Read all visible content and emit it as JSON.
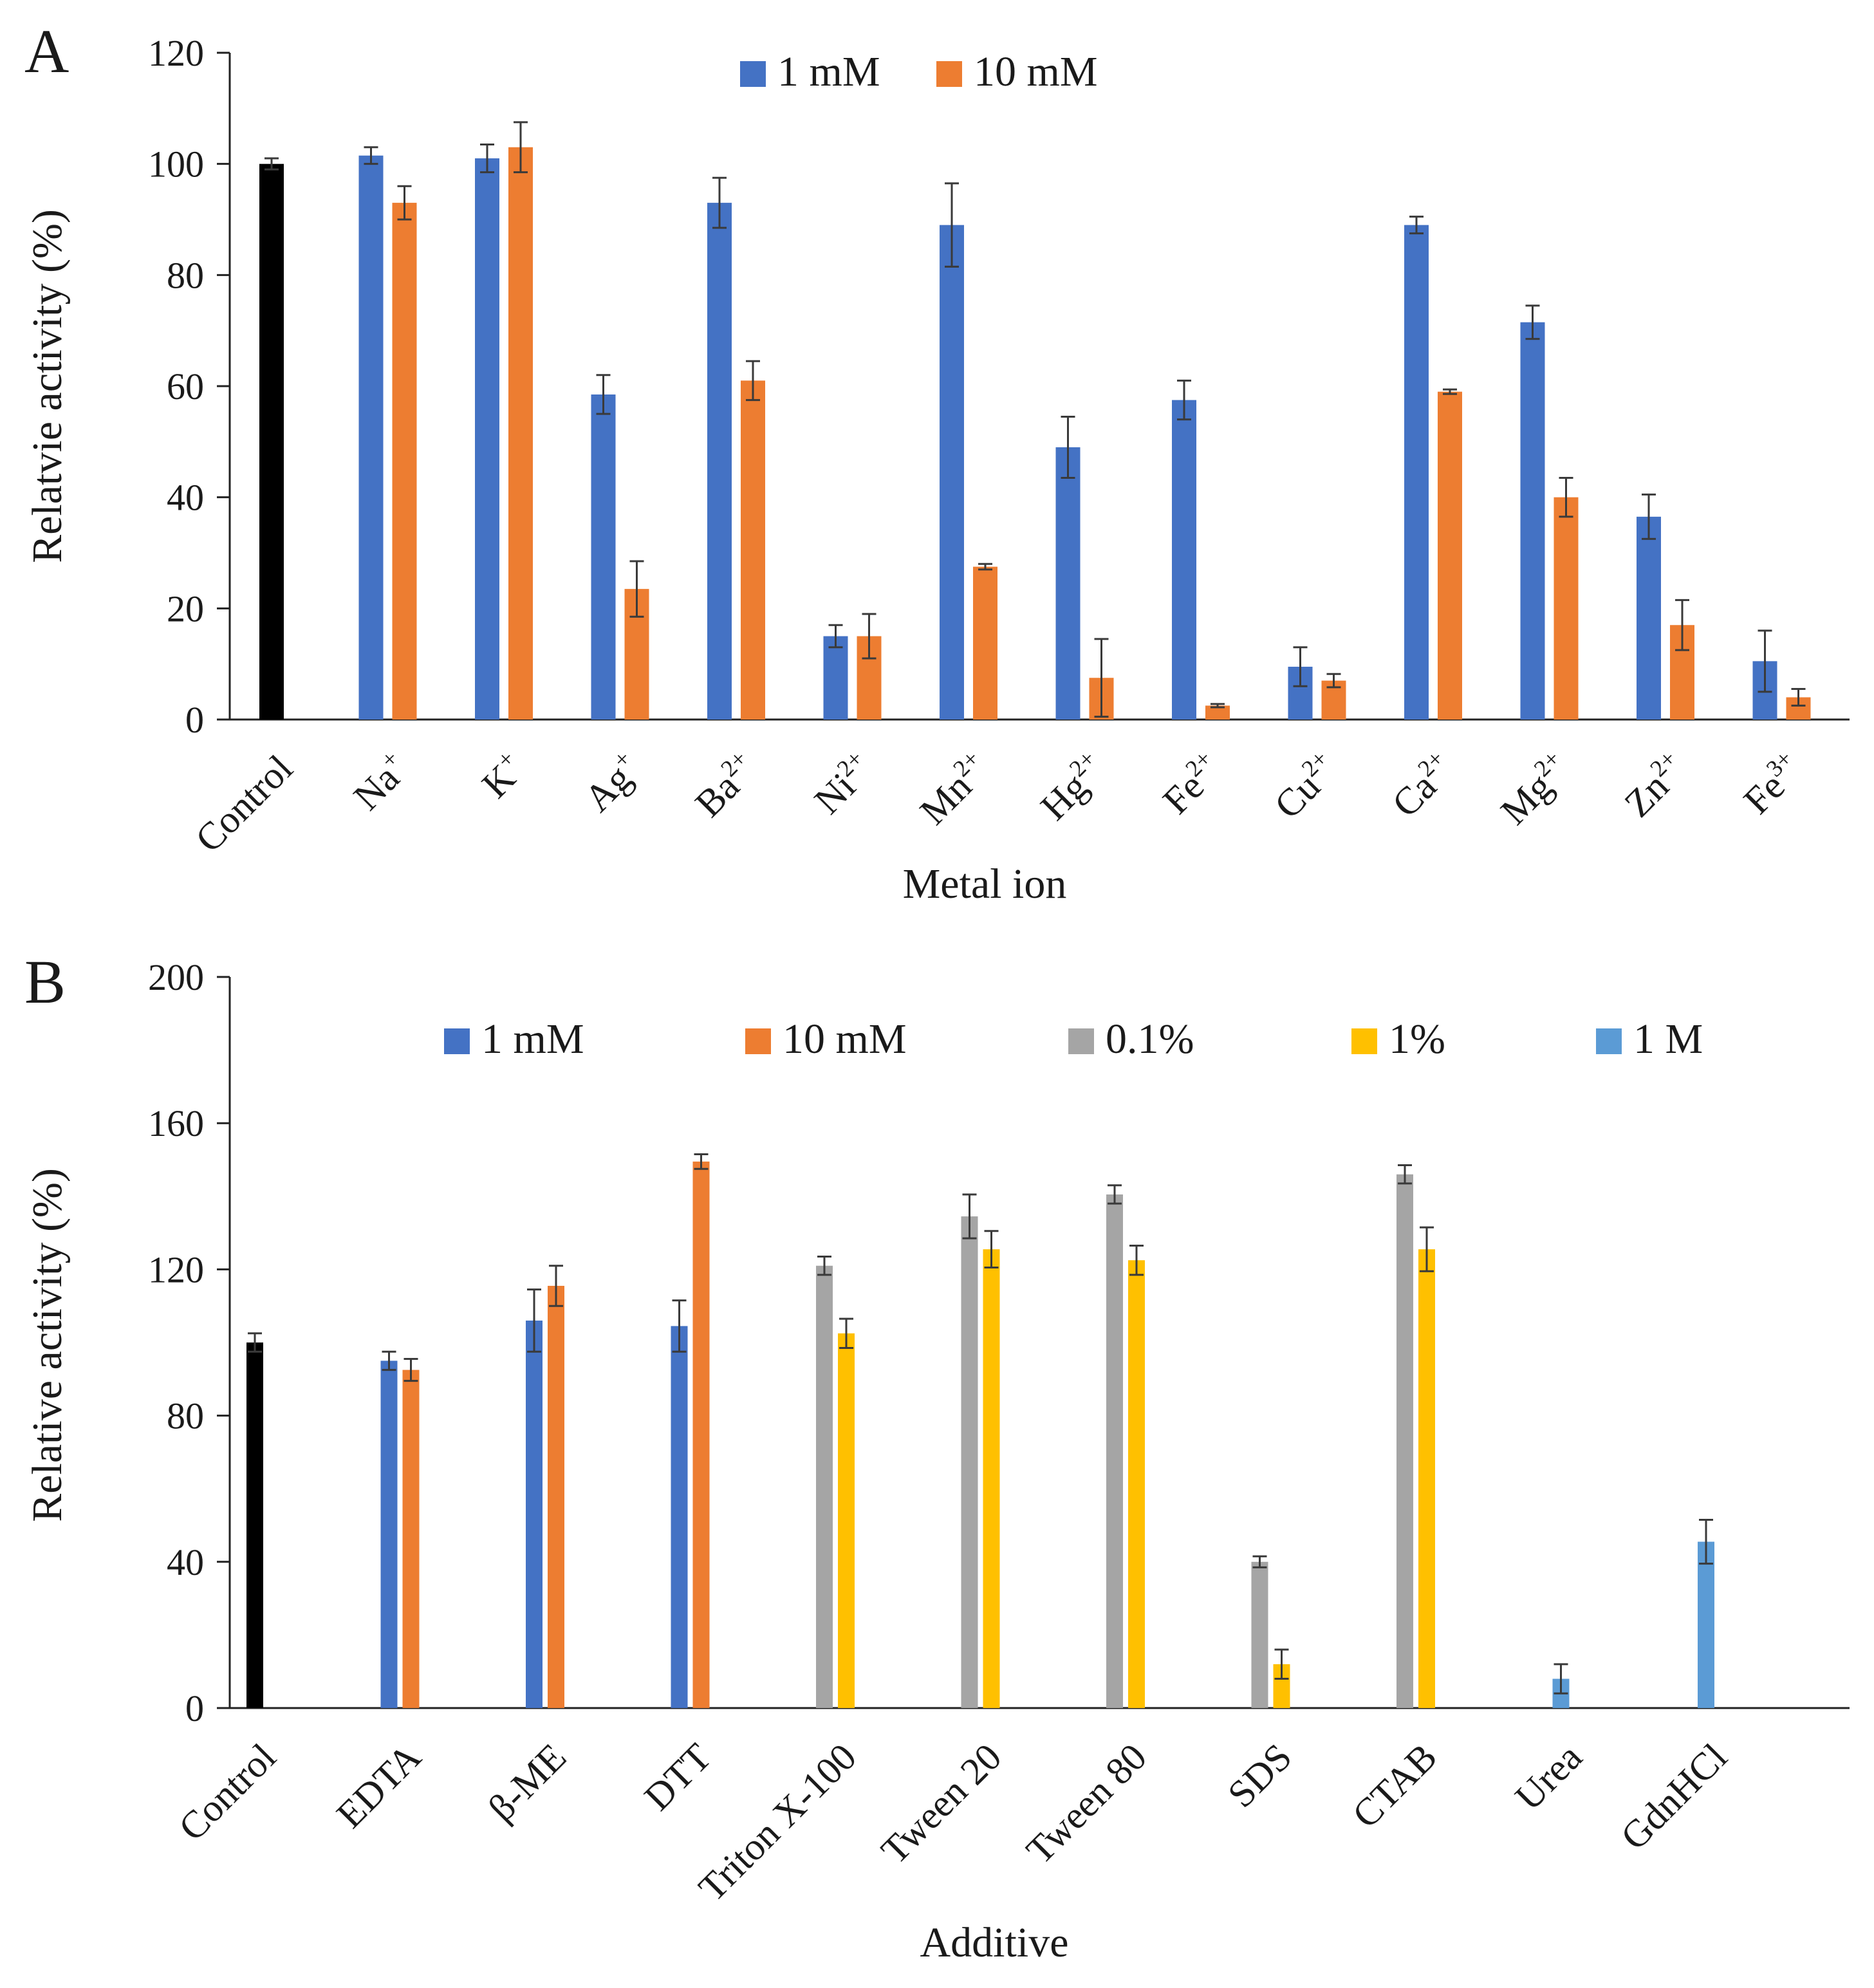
{
  "panels": [
    {
      "id": "A",
      "letter": "A"
    },
    {
      "id": "B",
      "letter": "B"
    }
  ],
  "chart_data": [
    {
      "panel": "A",
      "type": "bar",
      "xlabel": "Metal ion",
      "ylabel": "Relatvie activity (%)",
      "ylim": [
        0,
        120
      ],
      "yticks": [
        0,
        20,
        40,
        60,
        80,
        100,
        120
      ],
      "legend_position": "top-center",
      "grid": false,
      "categories": [
        {
          "base": "Control",
          "sup": ""
        },
        {
          "base": "Na",
          "sup": "+"
        },
        {
          "base": "K",
          "sup": "+"
        },
        {
          "base": "Ag",
          "sup": "+"
        },
        {
          "base": "Ba",
          "sup": "2+"
        },
        {
          "base": "Ni",
          "sup": "2+"
        },
        {
          "base": "Mn",
          "sup": "2+"
        },
        {
          "base": "Hg",
          "sup": "2+"
        },
        {
          "base": "Fe",
          "sup": "2+"
        },
        {
          "base": "Cu",
          "sup": "2+"
        },
        {
          "base": "Ca",
          "sup": "2+"
        },
        {
          "base": "Mg",
          "sup": "2+"
        },
        {
          "base": "Zn",
          "sup": "2+"
        },
        {
          "base": "Fe",
          "sup": "3+"
        }
      ],
      "control": {
        "value": 100,
        "error": 1,
        "color": "#000000"
      },
      "series": [
        {
          "name": "1 mM",
          "color": "#4472C4",
          "values": [
            null,
            101.5,
            101,
            58.5,
            93,
            15,
            89,
            49,
            57.5,
            9.5,
            89,
            71.5,
            36.5,
            10.5
          ],
          "errors": [
            null,
            1.5,
            2.5,
            3.5,
            4.5,
            2,
            7.5,
            5.5,
            3.5,
            3.5,
            1.5,
            3,
            4,
            5.5
          ]
        },
        {
          "name": "10 mM",
          "color": "#ED7D31",
          "values": [
            null,
            93,
            103,
            23.5,
            61,
            15,
            27.5,
            7.5,
            2.5,
            7,
            59,
            40,
            17,
            4
          ],
          "errors": [
            null,
            3,
            4.5,
            5,
            3.5,
            4,
            0.5,
            7,
            0.3,
            1.2,
            0.4,
            3.5,
            4.5,
            1.5
          ]
        }
      ]
    },
    {
      "panel": "B",
      "type": "bar",
      "xlabel": "Additive",
      "ylabel": "Relative activity (%)",
      "ylim": [
        0,
        200
      ],
      "yticks": [
        0,
        40,
        80,
        120,
        160,
        200
      ],
      "legend_position": "top",
      "grid": false,
      "categories": [
        {
          "base": "Control",
          "sup": ""
        },
        {
          "base": "EDTA",
          "sup": ""
        },
        {
          "base": "β-ME",
          "sup": ""
        },
        {
          "base": "DTT",
          "sup": ""
        },
        {
          "base": "Triton X-100",
          "sup": ""
        },
        {
          "base": "Tween 20",
          "sup": ""
        },
        {
          "base": "Tween 80",
          "sup": ""
        },
        {
          "base": "SDS",
          "sup": ""
        },
        {
          "base": "CTAB",
          "sup": ""
        },
        {
          "base": "Urea",
          "sup": ""
        },
        {
          "base": "GdnHCl",
          "sup": ""
        }
      ],
      "control": {
        "value": 100,
        "error": 2.5,
        "color": "#000000"
      },
      "series": [
        {
          "name": "1 mM",
          "color": "#4472C4",
          "values": [
            null,
            95,
            106,
            104.5,
            null,
            null,
            null,
            null,
            null,
            null,
            null
          ],
          "errors": [
            null,
            2.5,
            8.5,
            7,
            null,
            null,
            null,
            null,
            null,
            null,
            null
          ]
        },
        {
          "name": "10 mM",
          "color": "#ED7D31",
          "values": [
            null,
            92.5,
            115.5,
            149.5,
            null,
            null,
            null,
            null,
            null,
            null,
            null
          ],
          "errors": [
            null,
            3,
            5.5,
            2,
            null,
            null,
            null,
            null,
            null,
            null,
            null
          ]
        },
        {
          "name": "0.1%",
          "color": "#A5A5A5",
          "values": [
            null,
            null,
            null,
            null,
            121,
            134.5,
            140.5,
            40,
            146,
            null,
            null
          ],
          "errors": [
            null,
            null,
            null,
            null,
            2.5,
            6,
            2.5,
            1.5,
            2.5,
            null,
            null
          ]
        },
        {
          "name": "1%",
          "color": "#FFC000",
          "values": [
            null,
            null,
            null,
            null,
            102.5,
            125.5,
            122.5,
            12,
            125.5,
            null,
            null
          ],
          "errors": [
            null,
            null,
            null,
            null,
            4,
            5,
            4,
            4,
            6,
            null,
            null
          ]
        },
        {
          "name": "1 M",
          "color": "#5B9BD5",
          "values": [
            null,
            null,
            null,
            null,
            null,
            null,
            null,
            null,
            null,
            8,
            45.5
          ],
          "errors": [
            null,
            null,
            null,
            null,
            null,
            null,
            null,
            null,
            null,
            4,
            6
          ]
        }
      ]
    }
  ]
}
